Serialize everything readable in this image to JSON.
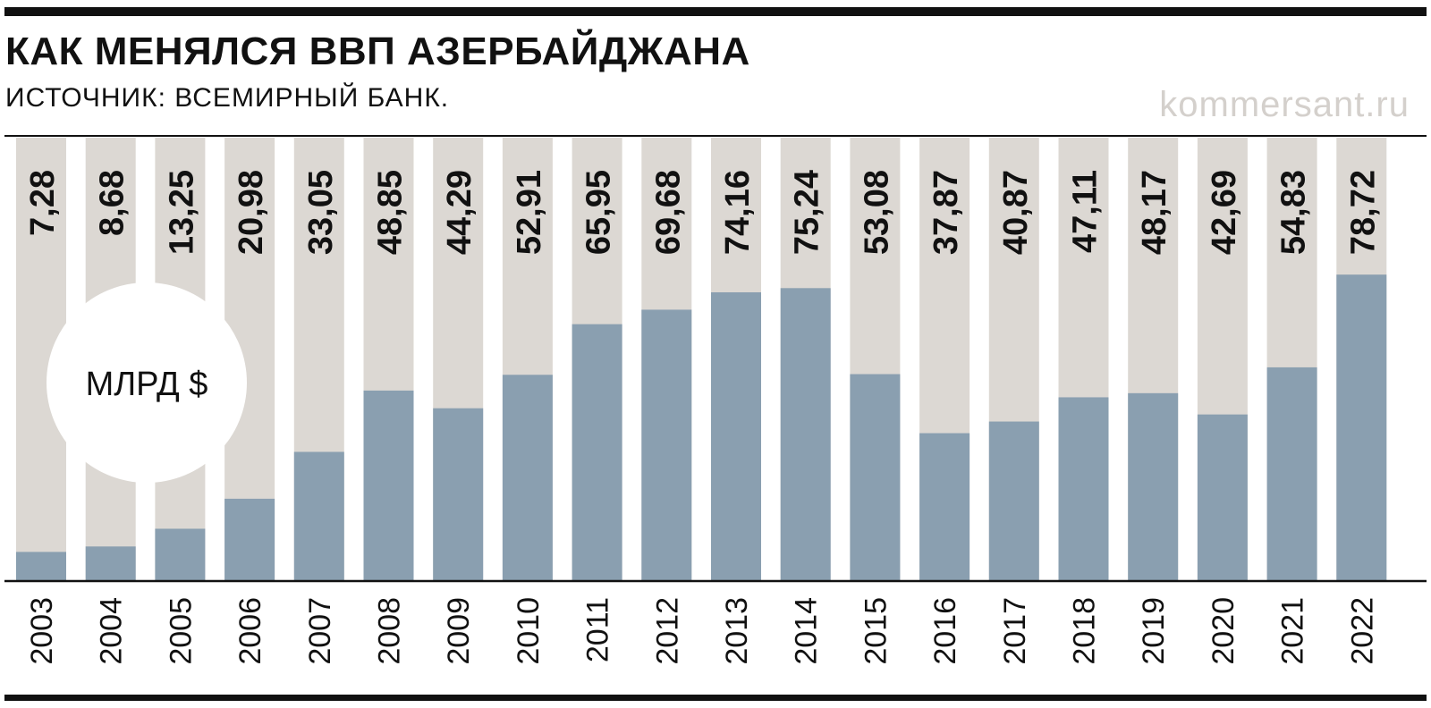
{
  "header": {
    "title": "КАК МЕНЯЛСЯ ВВП АЗЕРБАЙДЖАНА",
    "subtitle": "ИСТОЧНИК: ВСЕМИРНЫЙ БАНК.",
    "brand": "kommersant.ru"
  },
  "unit_badge": "МЛРД $",
  "colors": {
    "bar": "#8a9fb0",
    "track": "#dcd8d3",
    "text": "#111111",
    "brand": "#d4d0cc"
  },
  "chart_data": {
    "type": "bar",
    "title": "КАК МЕНЯЛСЯ ВВП АЗЕРБАЙДЖАНА",
    "subtitle": "ИСТОЧНИК: ВСЕМИРНЫЙ БАНК.",
    "ylabel": "МЛРД $",
    "categories": [
      "2003",
      "2004",
      "2005",
      "2006",
      "2007",
      "2008",
      "2009",
      "2010",
      "2011",
      "2012",
      "2013",
      "2014",
      "2015",
      "2016",
      "2017",
      "2018",
      "2019",
      "2020",
      "2021",
      "2022"
    ],
    "values": [
      7.28,
      8.68,
      13.25,
      20.98,
      33.05,
      48.85,
      44.29,
      52.91,
      65.95,
      69.68,
      74.16,
      75.24,
      53.08,
      37.87,
      40.87,
      47.11,
      48.17,
      42.69,
      54.83,
      78.72
    ],
    "value_labels": [
      "7,28",
      "8,68",
      "13,25",
      "20,98",
      "33,05",
      "48,85",
      "44,29",
      "52,91",
      "65,95",
      "69,68",
      "74,16",
      "75,24",
      "53,08",
      "37,87",
      "40,87",
      "47,11",
      "48,17",
      "42,69",
      "54,83",
      "78,72"
    ],
    "ylim": [
      0,
      114
    ],
    "grid": false,
    "legend": "none"
  }
}
